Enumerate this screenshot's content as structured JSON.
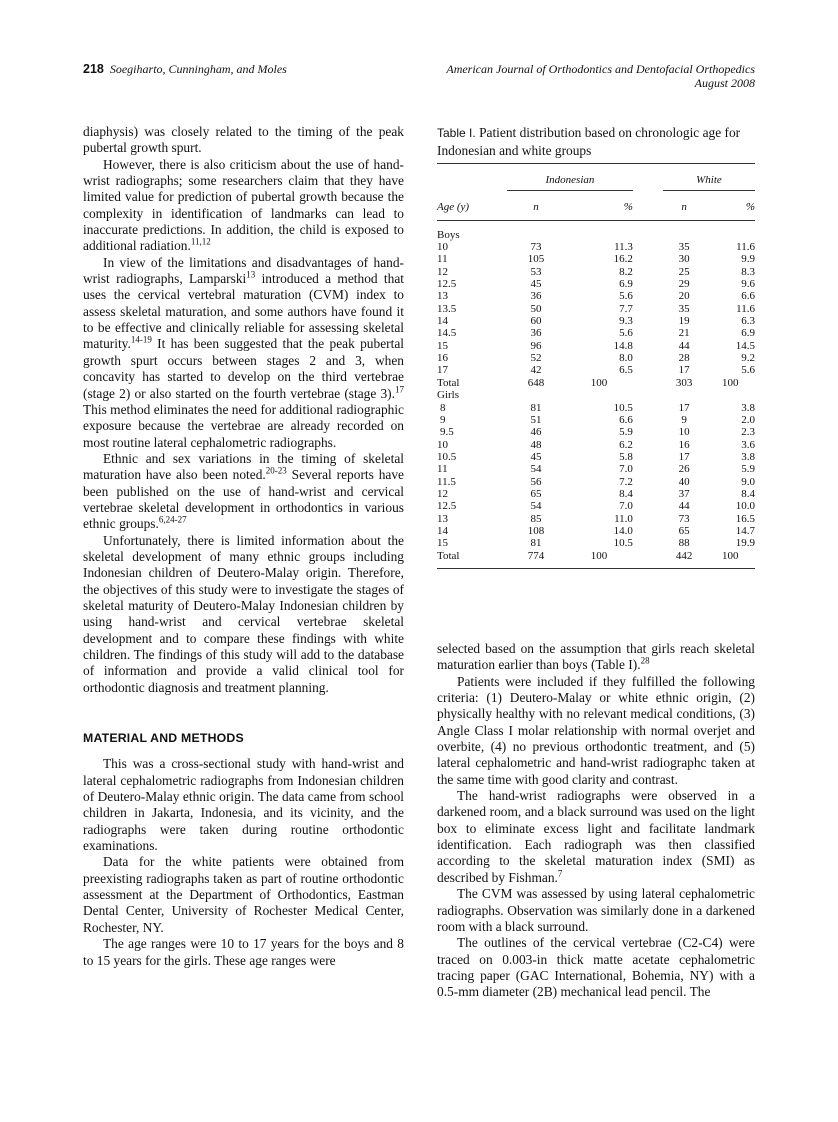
{
  "header": {
    "page_number": "218",
    "authors": "Soegiharto, Cunningham, and Moles",
    "journal": "American Journal of Orthodontics and Dentofacial Orthopedics",
    "date": "August 2008"
  },
  "left_paragraphs": [
    "diaphysis) was closely related to the timing of the peak pubertal growth spurt.",
    "However, there is also criticism about the use of hand-wrist radiographs; some researchers claim that they have limited value for prediction of pubertal growth because the complexity in identification of landmarks can lead to inaccurate predictions. In addition, the child is exposed to additional radiation.",
    "In view of the limitations and disadvantages of hand-wrist radiographs, Lamparski",
    "Ethnic and sex variations in the timing of skeletal maturation have also been noted.",
    "Unfortunately, there is limited information about the skeletal development of many ethnic groups including Indonesian children of Deutero-Malay origin. Therefore, the objectives of this study were to investigate the stages of skeletal maturity of Deutero-Malay Indonesian children by using hand-wrist and cervical vertebrae skeletal development and to compare these findings with white children. The findings of this study will add to the database of information and provide a valid clinical tool for orthodontic diagnosis and treatment planning."
  ],
  "p2_ref": "11,12",
  "p3": {
    "ref1": "13",
    "mid": " introduced a method that uses the cervical vertebral maturation (CVM) index to assess skeletal maturation, and some authors have found it to be effective and clinically reliable for assessing skeletal maturity.",
    "ref2": "14-19",
    "mid2": " It has been suggested that the peak pubertal growth spurt occurs between stages 2 and 3, when concavity has started to develop on the third vertebrae (stage 2) or also started on the fourth vertebrae (stage 3).",
    "ref3": "17",
    "end": " This method eliminates the need for additional radiographic exposure because the vertebrae are already recorded on most routine lateral cephalometric radiographs."
  },
  "p4": {
    "ref1": "20-23",
    "mid": " Several reports have been published on the use of hand-wrist and cervical vertebrae skeletal development in orthodontics in various ethnic groups.",
    "ref2": "6,24-27"
  },
  "section_heading": "MATERIAL AND METHODS",
  "methods_left": [
    "This was a cross-sectional study with hand-wrist and lateral cephalometric radiographs from Indonesian children of Deutero-Malay ethnic origin. The data came from school children in Jakarta, Indonesia, and its vicinity, and the radiographs were taken during routine orthodontic examinations.",
    "Data for the white patients were obtained from preexisting radiographs taken as part of routine orthodontic assessment at the Department of Orthodontics, Eastman Dental Center, University of Rochester Medical Center, Rochester, NY.",
    "The age ranges were 10 to 17 years for the boys and 8 to 15 years for the girls. These age ranges were"
  ],
  "right": {
    "p1": "selected based on the assumption that girls reach skeletal maturation earlier than boys (Table I).",
    "p1_ref": "28",
    "p2": "Patients were included if they fulfilled the following criteria: (1) Deutero-Malay or white ethnic origin, (2) physically healthy with no relevant medical conditions, (3) Angle Class I molar relationship with normal overjet and overbite, (4) no previous orthodontic treatment, and (5) lateral cephalometric and hand-wrist radiographc taken at the same time with good clarity and contrast.",
    "p3": "The hand-wrist radiographs were observed in a darkened room, and a black surround was used on the light box to eliminate excess light and facilitate landmark identification. Each radiograph was then classified according to the skeletal maturation index (SMI) as described by Fishman.",
    "p3_ref": "7",
    "p4": "The CVM was assessed by using lateral cephalometric radiographs. Observation was similarly done in a darkened room with a black surround.",
    "p5": "The outlines of the cervical vertebrae (C2-C4) were traced on 0.003-in thick matte acetate cephalometric tracing paper (GAC International, Bohemia, NY) with a 0.5-mm diameter (2B) mechanical lead pencil. The"
  },
  "table": {
    "label": "Table I.",
    "caption": "Patient distribution based on chronologic age for Indonesian and white groups",
    "groups": [
      "Indonesian",
      "White"
    ],
    "columns": [
      "Age (y)",
      "n",
      "%",
      "n",
      "%"
    ],
    "sections": [
      {
        "name": "Boys",
        "rows": [
          [
            "10",
            "73",
            "11.3",
            "35",
            "11.6"
          ],
          [
            "11",
            "105",
            "16.2",
            "30",
            "9.9"
          ],
          [
            "12",
            "53",
            "8.2",
            "25",
            "8.3"
          ],
          [
            "12.5",
            "45",
            "6.9",
            "29",
            "9.6"
          ],
          [
            "13",
            "36",
            "5.6",
            "20",
            "6.6"
          ],
          [
            "13.5",
            "50",
            "7.7",
            "35",
            "11.6"
          ],
          [
            "14",
            "60",
            "9.3",
            "19",
            "6.3"
          ],
          [
            "14.5",
            "36",
            "5.6",
            "21",
            "6.9"
          ],
          [
            "15",
            "96",
            "14.8",
            "44",
            "14.5"
          ],
          [
            "16",
            "52",
            "8.0",
            "28",
            "9.2"
          ],
          [
            "17",
            "42",
            "6.5",
            "17",
            "5.6"
          ],
          [
            "Total",
            "648",
            "100",
            "303",
            "100"
          ]
        ]
      },
      {
        "name": "Girls",
        "rows": [
          [
            "8",
            "81",
            "10.5",
            "17",
            "3.8"
          ],
          [
            "9",
            "51",
            "6.6",
            "9",
            "2.0"
          ],
          [
            "9.5",
            "46",
            "5.9",
            "10",
            "2.3"
          ],
          [
            "10",
            "48",
            "6.2",
            "16",
            "3.6"
          ],
          [
            "10.5",
            "45",
            "5.8",
            "17",
            "3.8"
          ],
          [
            "11",
            "54",
            "7.0",
            "26",
            "5.9"
          ],
          [
            "11.5",
            "56",
            "7.2",
            "40",
            "9.0"
          ],
          [
            "12",
            "65",
            "8.4",
            "37",
            "8.4"
          ],
          [
            "12.5",
            "54",
            "7.0",
            "44",
            "10.0"
          ],
          [
            "13",
            "85",
            "11.0",
            "73",
            "16.5"
          ],
          [
            "14",
            "108",
            "14.0",
            "65",
            "14.7"
          ],
          [
            "15",
            "81",
            "10.5",
            "88",
            "19.9"
          ],
          [
            "Total",
            "774",
            "100",
            "442",
            "100"
          ]
        ]
      }
    ]
  }
}
